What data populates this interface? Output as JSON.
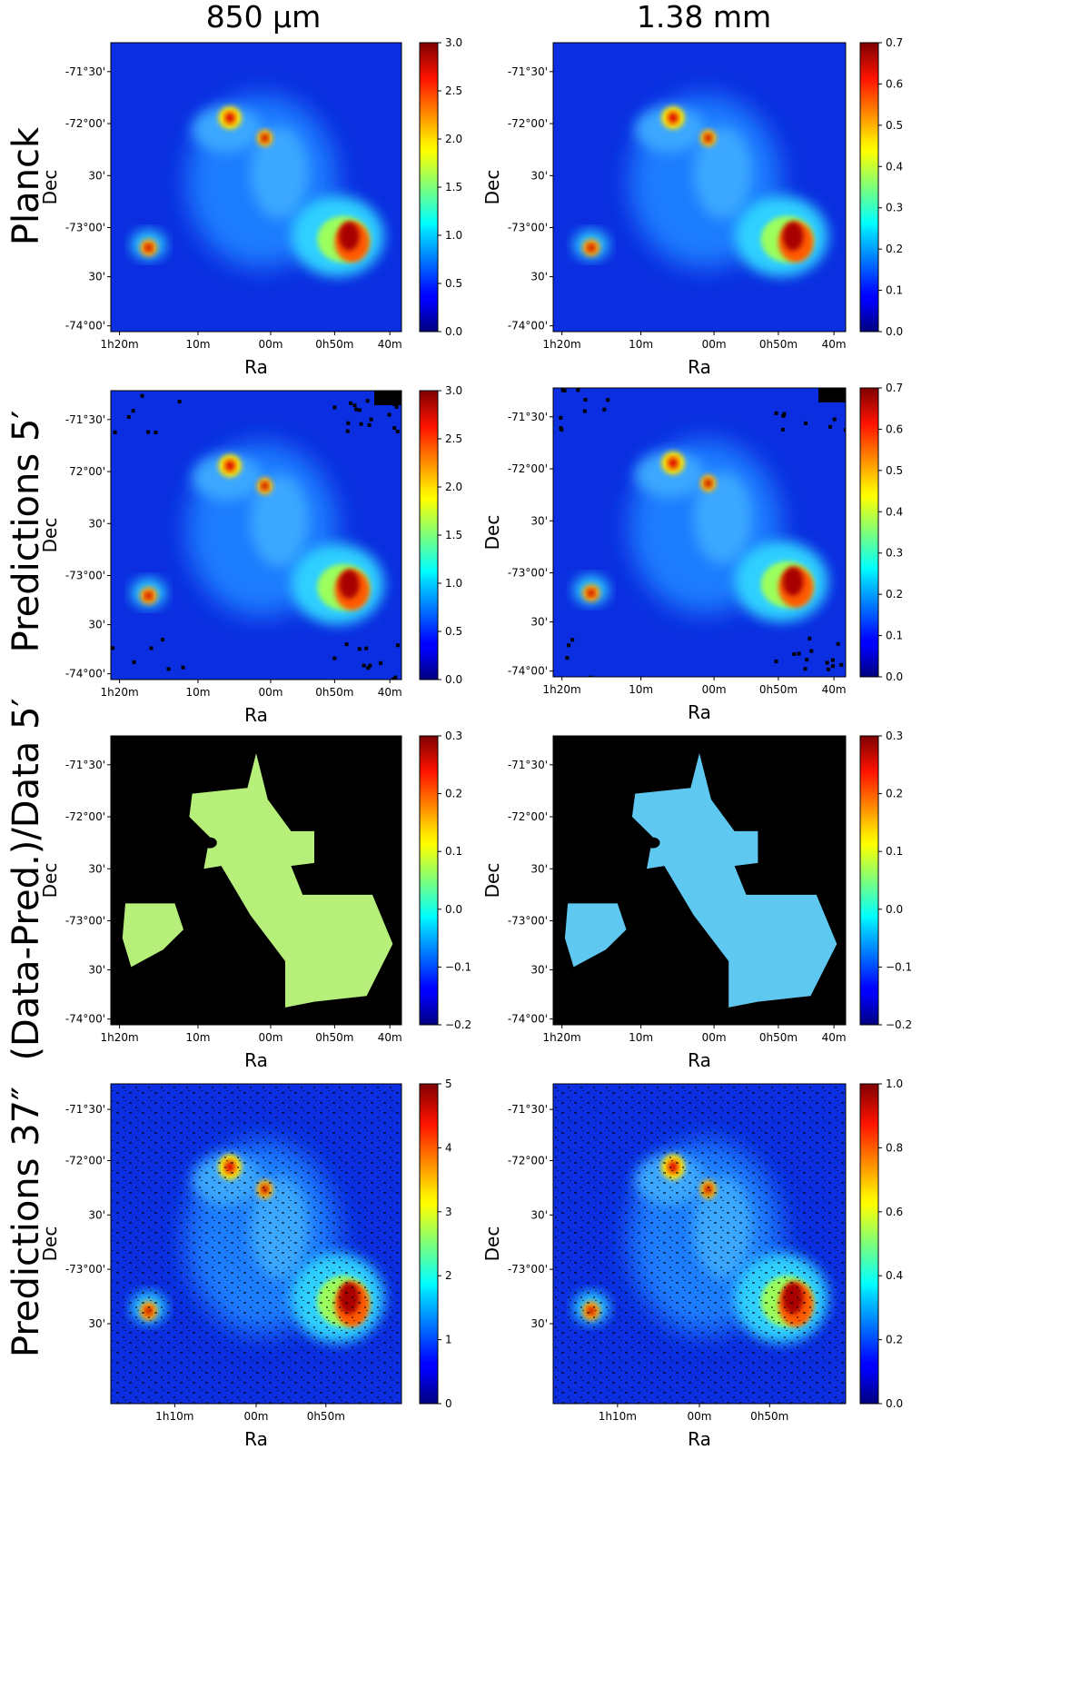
{
  "figure": {
    "columns": [
      "850 μm",
      "1.38 mm"
    ],
    "rows": [
      "Planck",
      "Predictions 5′",
      "(Data-Pred.)/Data 5′",
      "Predictions 37″"
    ]
  },
  "axes": {
    "xlabel": "Ra",
    "ylabel": "Dec",
    "ra_ticks_standard": [
      "1h20m",
      "10m",
      "00m",
      "0h50m",
      "40m"
    ],
    "ra_ticks_bottom": [
      "1h10m",
      "00m",
      "0h50m"
    ],
    "dec_ticks_standard": [
      "-71°30'",
      "-72°00'",
      "30'",
      "-73°00'",
      "30'",
      "-74°00'"
    ],
    "dec_ticks_pred5_850": [
      "-71°30'",
      "72°00'",
      "30'",
      "-73°00'",
      "30'",
      "-74°00'"
    ],
    "dec_ticks_bottom": [
      "-71°30'",
      "-72°00'",
      "30'",
      "-73°00'",
      "30'"
    ]
  },
  "colormap": "jet",
  "masked_color": "#000000",
  "chart_data": [
    {
      "type": "heatmap",
      "row": "Planck",
      "column": "850 μm",
      "xlabel": "Ra",
      "ylabel": "Dec",
      "colorbar": {
        "range": [
          0.0,
          3.0
        ],
        "ticks": [
          "0.0",
          "0.5",
          "1.0",
          "1.5",
          "2.0",
          "2.5",
          "3.0"
        ]
      }
    },
    {
      "type": "heatmap",
      "row": "Planck",
      "column": "1.38 mm",
      "xlabel": "Ra",
      "ylabel": "Dec",
      "colorbar": {
        "range": [
          0.0,
          0.7
        ],
        "ticks": [
          "0.0",
          "0.1",
          "0.2",
          "0.3",
          "0.4",
          "0.5",
          "0.6",
          "0.7"
        ]
      }
    },
    {
      "type": "heatmap",
      "row": "Predictions 5′",
      "column": "850 μm",
      "xlabel": "Ra",
      "ylabel": "Dec",
      "colorbar": {
        "range": [
          0.0,
          3.0
        ],
        "ticks": [
          "0.0",
          "0.5",
          "1.0",
          "1.5",
          "2.0",
          "2.5",
          "3.0"
        ]
      }
    },
    {
      "type": "heatmap",
      "row": "Predictions 5′",
      "column": "1.38 mm",
      "xlabel": "Ra",
      "ylabel": "Dec",
      "colorbar": {
        "range": [
          0.0,
          0.7
        ],
        "ticks": [
          "0.0",
          "0.1",
          "0.2",
          "0.3",
          "0.4",
          "0.5",
          "0.6",
          "0.7"
        ]
      }
    },
    {
      "type": "heatmap",
      "row": "(Data-Pred.)/Data 5′",
      "column": "850 μm",
      "xlabel": "Ra",
      "ylabel": "Dec",
      "colorbar": {
        "range": [
          -0.2,
          0.3
        ],
        "ticks": [
          "−0.2",
          "−0.1",
          "0.0",
          "0.1",
          "0.2",
          "0.3"
        ]
      }
    },
    {
      "type": "heatmap",
      "row": "(Data-Pred.)/Data 5′",
      "column": "1.38 mm",
      "xlabel": "Ra",
      "ylabel": "Dec",
      "colorbar": {
        "range": [
          -0.2,
          0.3
        ],
        "ticks": [
          "−0.2",
          "−0.1",
          "0.0",
          "0.1",
          "0.2",
          "0.3"
        ]
      }
    },
    {
      "type": "heatmap",
      "row": "Predictions 37″",
      "column": "850 μm",
      "xlabel": "Ra",
      "ylabel": "Dec",
      "colorbar": {
        "range": [
          0,
          5
        ],
        "ticks": [
          "0",
          "1",
          "2",
          "3",
          "4",
          "5"
        ]
      }
    },
    {
      "type": "heatmap",
      "row": "Predictions 37″",
      "column": "1.38 mm",
      "xlabel": "Ra",
      "ylabel": "Dec",
      "colorbar": {
        "range": [
          0.0,
          1.0
        ],
        "ticks": [
          "0.0",
          "0.2",
          "0.4",
          "0.6",
          "0.8",
          "1.0"
        ]
      }
    }
  ]
}
